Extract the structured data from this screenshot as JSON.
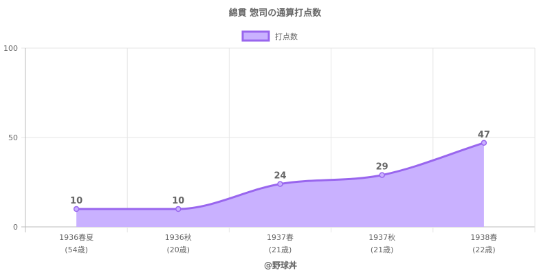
{
  "chart_data": {
    "type": "area",
    "title": "綿貫 惣司の通算打点数",
    "categories": [
      [
        "1936春夏",
        "(54歳)"
      ],
      [
        "1936秋",
        "(20歳)"
      ],
      [
        "1937春",
        "(21歳)"
      ],
      [
        "1937秋",
        "(21歳)"
      ],
      [
        "1938春",
        "(22歳)"
      ]
    ],
    "series": [
      {
        "name": "打点数",
        "values": [
          10,
          10,
          24,
          29,
          47
        ]
      }
    ],
    "ylim": [
      0,
      100
    ],
    "yticks": [
      "0",
      "50",
      "100"
    ],
    "data_labels": [
      "10",
      "10",
      "24",
      "29",
      "47"
    ],
    "grid": true,
    "legend": "top",
    "colors": {
      "line": "#9966ee",
      "fill": "#c9b1ff",
      "grid": "#e5e5e5",
      "axis": "#bbbbbb"
    }
  },
  "credit": "@野球丼"
}
